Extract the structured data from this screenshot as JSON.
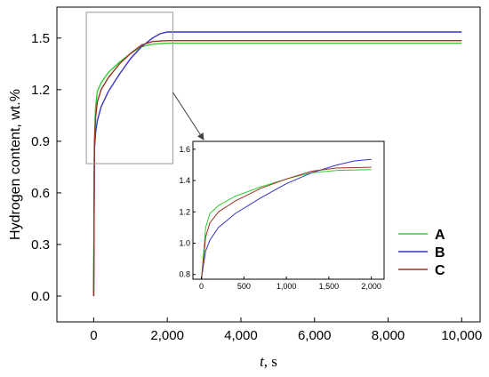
{
  "chart_data": {
    "type": "line",
    "ylabel": "Hydrogen content, wt.%",
    "xlabel_var": "t",
    "xlabel_unit": ", s",
    "xlim": [
      -1000,
      10500
    ],
    "ylim": [
      -0.15,
      1.68
    ],
    "xticks": [
      0,
      2000,
      4000,
      6000,
      8000,
      10000
    ],
    "xtick_labels": [
      "0",
      "2,000",
      "4,000",
      "6,000",
      "8,000",
      "10,000"
    ],
    "yticks": [
      0.0,
      0.3,
      0.6,
      0.9,
      1.2,
      1.5
    ],
    "ytick_labels": [
      "0.0",
      "0.3",
      "0.6",
      "0.9",
      "1.2",
      "1.5"
    ],
    "series": [
      {
        "name": "A",
        "color": "#33cc33",
        "x": [
          0,
          20,
          50,
          100,
          200,
          400,
          700,
          1000,
          1300,
          1600,
          2000,
          4000,
          10000
        ],
        "y": [
          0,
          0.9,
          1.1,
          1.19,
          1.24,
          1.3,
          1.36,
          1.41,
          1.45,
          1.465,
          1.47,
          1.47,
          1.47
        ]
      },
      {
        "name": "B",
        "color": "#3333cc",
        "x": [
          0,
          20,
          50,
          100,
          200,
          400,
          700,
          1000,
          1300,
          1600,
          1800,
          2000,
          4000,
          10000
        ],
        "y": [
          0,
          0.85,
          0.95,
          1.02,
          1.1,
          1.19,
          1.29,
          1.38,
          1.45,
          1.5,
          1.525,
          1.535,
          1.535,
          1.535
        ]
      },
      {
        "name": "C",
        "color": "#993322",
        "x": [
          0,
          20,
          50,
          100,
          200,
          400,
          700,
          1000,
          1300,
          1600,
          2000,
          4000,
          10000
        ],
        "y": [
          0,
          0.88,
          1.04,
          1.13,
          1.2,
          1.27,
          1.35,
          1.41,
          1.46,
          1.48,
          1.485,
          1.485,
          1.485
        ]
      }
    ],
    "inset": {
      "xlim": [
        -100,
        2150
      ],
      "ylim": [
        0.77,
        1.65
      ],
      "xticks": [
        0,
        500,
        1000,
        1500,
        2000
      ],
      "xtick_labels": [
        "0",
        "500",
        "1,000",
        "1,500",
        "2,000"
      ],
      "yticks": [
        0.8,
        1.0,
        1.2,
        1.4,
        1.6
      ],
      "ytick_labels": [
        "0.8",
        "1.0",
        "1.2",
        "1.4",
        "1.6"
      ]
    },
    "zoom_box": {
      "x": [
        -200,
        2150
      ],
      "y": [
        0.77,
        1.65
      ]
    },
    "legend_position": "bottom-right",
    "grid": false
  }
}
